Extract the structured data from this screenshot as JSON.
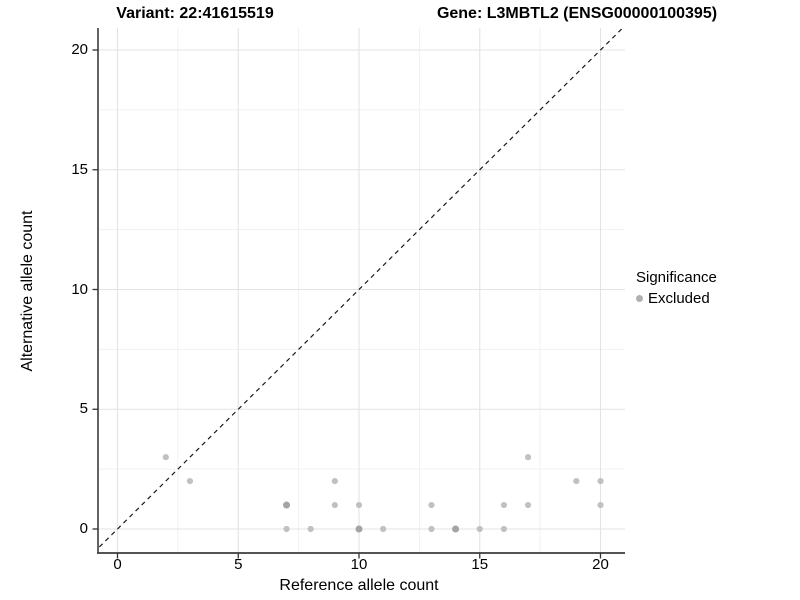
{
  "header": {
    "variant_title": "Variant: 22:41615519",
    "gene_title": "Gene: L3MBTL2 (ENSG00000100395)"
  },
  "chart_data": {
    "type": "scatter",
    "title": "Variant: 22:41615519  /  Gene: L3MBTL2 (ENSG00000100395)",
    "xlabel": "Reference allele count",
    "ylabel": "Alternative allele count",
    "xlim": [
      0,
      20
    ],
    "ylim": [
      0,
      20
    ],
    "xticks": [
      0,
      5,
      10,
      15,
      20
    ],
    "yticks": [
      0,
      5,
      10,
      15,
      20
    ],
    "xtick_labels": [
      "0",
      "5",
      "10",
      "15",
      "20"
    ],
    "ytick_labels": [
      "0",
      "5",
      "10",
      "15",
      "20"
    ],
    "grid": "major and minor gridlines, white panel",
    "identity_line": {
      "style": "dashed",
      "color": "#1a1a1a",
      "from": "y=x"
    },
    "legend": {
      "title": "Significance",
      "position": "right",
      "items": [
        {
          "label": "Excluded",
          "color": "#b0b0b0"
        }
      ]
    },
    "colors": {
      "grid_major": "#e3e3e3",
      "grid_minor": "#f1f1f1",
      "axis_line": "#3c3c3c",
      "point": "#c1c1c1",
      "point_overlap": "#a4a4a4"
    },
    "series": [
      {
        "name": "Excluded",
        "color": "#c1c1c1",
        "overlap_color": "#a4a4a4",
        "points": [
          {
            "x": 2,
            "y": 3
          },
          {
            "x": 3,
            "y": 2
          },
          {
            "x": 7,
            "y": 0
          },
          {
            "x": 7,
            "y": 1,
            "overlap": true
          },
          {
            "x": 8,
            "y": 0
          },
          {
            "x": 9,
            "y": 1
          },
          {
            "x": 9,
            "y": 2
          },
          {
            "x": 10,
            "y": 0,
            "overlap": true
          },
          {
            "x": 10,
            "y": 1
          },
          {
            "x": 11,
            "y": 0
          },
          {
            "x": 13,
            "y": 0
          },
          {
            "x": 13,
            "y": 1
          },
          {
            "x": 14,
            "y": 0,
            "overlap": true
          },
          {
            "x": 15,
            "y": 0
          },
          {
            "x": 16,
            "y": 0
          },
          {
            "x": 16,
            "y": 1
          },
          {
            "x": 17,
            "y": 1
          },
          {
            "x": 17,
            "y": 3
          },
          {
            "x": 19,
            "y": 2
          },
          {
            "x": 20,
            "y": 1
          },
          {
            "x": 20,
            "y": 2
          }
        ]
      }
    ]
  }
}
